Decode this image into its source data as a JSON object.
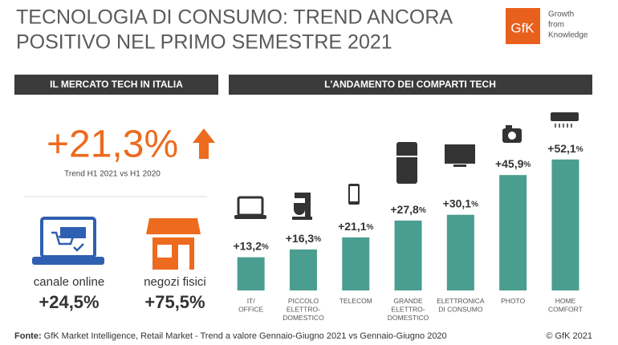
{
  "header": {
    "title_lines": [
      "TECNOLOGIA DI CONSUMO: TREND ANCORA",
      "POSITIVO NEL PRIMO SEMESTRE 2021"
    ],
    "logo": "GfK",
    "tagline": [
      "Growth",
      "from",
      "Knowledge"
    ]
  },
  "left_panel": {
    "heading": "IL MERCATO TECH IN ITALIA",
    "total": "+21,3%",
    "total_caption": "Trend H1 2021 vs H1 2020",
    "channels": [
      {
        "label": "canale online",
        "value": "+24,5%"
      },
      {
        "label": "negozi fisici",
        "value": "+75,5%"
      }
    ]
  },
  "chart_data": {
    "type": "bar",
    "title": "L'ANDAMENTO DEI COMPARTI TECH",
    "categories": [
      "IT/\nOFFICE",
      "PICCOLO\nELETTRO-\nDOMESTICO",
      "TELECOM",
      "GRANDE\nELETTRO-\nDOMESTICO",
      "ELETTRONICA\nDI CONSUMO",
      "PHOTO",
      "HOME\nCOMFORT"
    ],
    "values": [
      13.2,
      16.3,
      21.1,
      27.8,
      30.1,
      45.9,
      52.1
    ],
    "value_labels": [
      "+13,2%",
      "+16,3%",
      "+21,1%",
      "+27,8%",
      "+30,1%",
      "+45,9%",
      "+52,1%"
    ],
    "color": "#4a9e8f",
    "ylim": [
      0,
      60
    ]
  },
  "footer": {
    "source_label": "Fonte:",
    "source": "GfK Market Intelligence, Retail Market - Trend a valore Gennaio-Giugno 2021 vs Gennaio-Giugno 2020",
    "copyright": "© GfK 2021"
  }
}
